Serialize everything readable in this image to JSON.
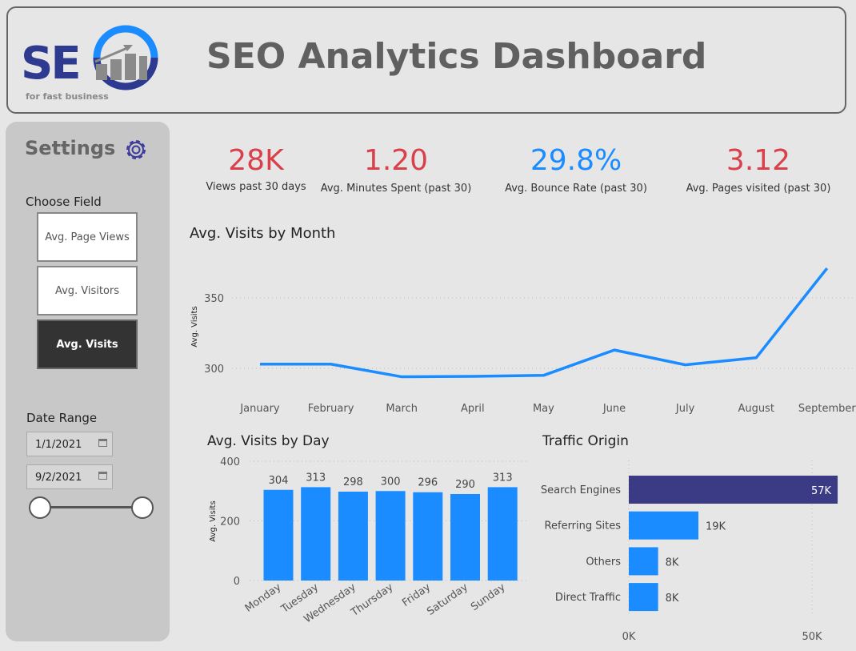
{
  "header": {
    "title": "SEO Analytics Dashboard",
    "logo_text": "SEO",
    "logo_tagline": "for fast business"
  },
  "sidebar": {
    "title": "Settings",
    "choose_field_label": "Choose Field",
    "fields": [
      {
        "label": "Avg. Page Views",
        "selected": false
      },
      {
        "label": "Avg. Visitors",
        "selected": false
      },
      {
        "label": "Avg. Visits",
        "selected": true
      }
    ],
    "date_range_label": "Date Range",
    "start_date": "1/1/2021",
    "end_date": "9/2/2021",
    "range_slider": [
      0,
      1
    ]
  },
  "kpis": [
    {
      "value": "28K",
      "label": "Views past 30 days",
      "color": "#d9404a"
    },
    {
      "value": "1.20",
      "label": "Avg. Minutes Spent (past 30)",
      "color": "#d9404a"
    },
    {
      "value": "29.8%",
      "label": "Avg. Bounce Rate (past 30)",
      "color": "#1a8cff"
    },
    {
      "value": "3.12",
      "label": "Avg. Pages visited (past 30)",
      "color": "#d9404a"
    }
  ],
  "chart_data": [
    {
      "type": "line",
      "title": "Avg. Visits by Month",
      "ylabel": "Avg. Visits",
      "xlabel": "",
      "categories": [
        "January",
        "February",
        "March",
        "April",
        "May",
        "June",
        "July",
        "August",
        "September"
      ],
      "values": [
        303,
        303,
        294,
        294.3,
        295,
        313,
        302.5,
        307.5,
        371
      ],
      "yticks": [
        300,
        350
      ],
      "ylim": [
        280,
        375
      ],
      "color": "#1a8cff",
      "grid": true
    },
    {
      "type": "bar",
      "title": "Avg. Visits by Day",
      "ylabel": "Avg. Visits",
      "categories": [
        "Monday",
        "Tuesday",
        "Wednesday",
        "Thursday",
        "Friday",
        "Saturday",
        "Sunday"
      ],
      "values": [
        304,
        313,
        298,
        300,
        296,
        290,
        313
      ],
      "labels": [
        "304",
        "313",
        "298",
        "300",
        "296",
        "290",
        "313"
      ],
      "yticks": [
        "0",
        "200",
        "400"
      ],
      "ylim": [
        0,
        400
      ],
      "color": "#1a8cff"
    },
    {
      "type": "bar",
      "orientation": "horizontal",
      "title": "Traffic Origin",
      "categories": [
        "Search Engines",
        "Referring Sites",
        "Others",
        "Direct Traffic"
      ],
      "values": [
        57,
        19,
        8,
        8
      ],
      "labels": [
        "57K",
        "19K",
        "8K",
        "8K"
      ],
      "xticks": [
        "0K",
        "50K"
      ],
      "xlim": [
        0,
        57
      ],
      "colors": [
        "#3a3a85",
        "#1a8cff",
        "#1a8cff",
        "#1a8cff"
      ]
    }
  ]
}
